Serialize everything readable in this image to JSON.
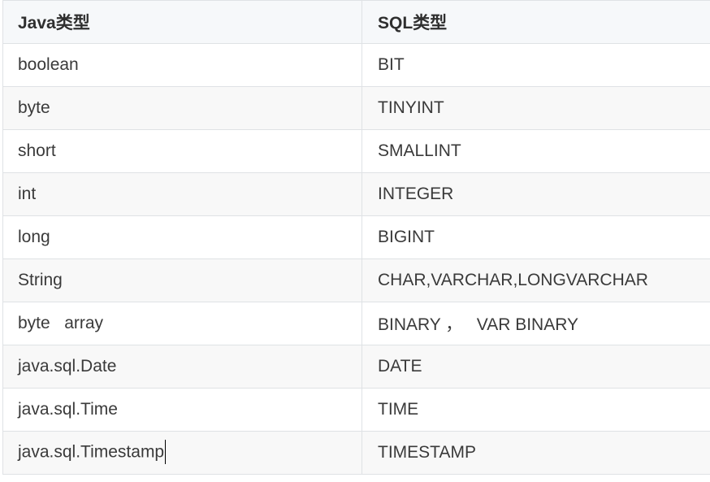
{
  "table": {
    "headers": [
      "Java类型",
      "SQL类型"
    ],
    "rows": [
      [
        "boolean",
        "BIT"
      ],
      [
        "byte",
        "TINYINT"
      ],
      [
        "short",
        "SMALLINT"
      ],
      [
        "int",
        "INTEGER"
      ],
      [
        "long",
        "BIGINT"
      ],
      [
        "String",
        "CHAR,VARCHAR,LONGVARCHAR"
      ],
      [
        "byte   array",
        "BINARY ，   VAR BINARY"
      ],
      [
        "java.sql.Date",
        "DATE"
      ],
      [
        "java.sql.Time",
        "TIME"
      ],
      [
        "java.sql.Timestamp",
        "TIMESTAMP"
      ]
    ]
  },
  "colors": {
    "header_bg": "#f6f8fa",
    "alt_row_bg": "#f8f8f8",
    "border": "#dfe2e5",
    "text": "#333333"
  }
}
